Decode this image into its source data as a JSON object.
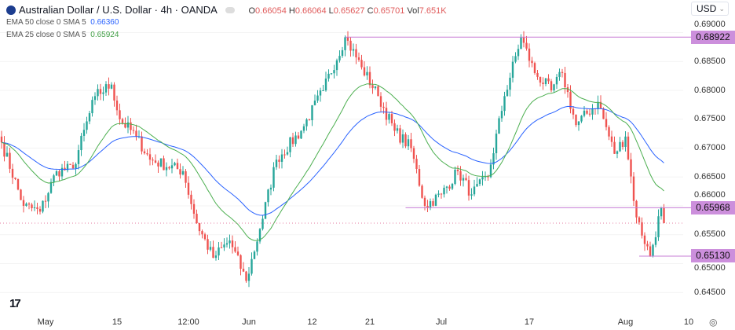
{
  "header": {
    "symbol_title": "Australian Dollar / U.S. Dollar · 4h · OANDA",
    "ohlc": {
      "o_label": "O",
      "o": "0.66054",
      "h_label": "H",
      "h": "0.66064",
      "l_label": "L",
      "l": "0.65627",
      "c_label": "C",
      "c": "0.65701",
      "vol_label": "Vol",
      "vol": "7.651K"
    },
    "ema50": {
      "label": "EMA 50 close 0 SMA 5",
      "value": "0.66360"
    },
    "ema25": {
      "label": "EMA 25 close 0 SMA 5",
      "value": "0.65924"
    },
    "currency": "USD"
  },
  "colors": {
    "up": "#26a69a",
    "down": "#ef5350",
    "ema50": "#2962ff",
    "ema25": "#4caf50",
    "level": "#c77dd6",
    "tag": "#cc8fdc"
  },
  "chart_data": {
    "type": "candlestick",
    "title": "Australian Dollar / U.S. Dollar · 4h · OANDA",
    "ylim": [
      0.6425,
      0.6905
    ],
    "y_ticks": [
      "0.64500",
      "0.65000",
      "0.65500",
      "0.66000",
      "0.66500",
      "0.67000",
      "0.67500",
      "0.68000",
      "0.68500",
      "0.69000"
    ],
    "x_ticks": [
      {
        "label": "May",
        "i": 16
      },
      {
        "label": "15",
        "i": 42
      },
      {
        "label": "12:00",
        "i": 68
      },
      {
        "label": "Jun",
        "i": 90
      },
      {
        "label": "12",
        "i": 113
      },
      {
        "label": "21",
        "i": 134
      },
      {
        "label": "Jul",
        "i": 160
      },
      {
        "label": "17",
        "i": 192
      },
      {
        "label": "Aug",
        "i": 227
      },
      {
        "label": "10",
        "i": 250
      }
    ],
    "close_path": [
      [
        0,
        0.671
      ],
      [
        8,
        0.66
      ],
      [
        14,
        0.659
      ],
      [
        20,
        0.666
      ],
      [
        26,
        0.6665
      ],
      [
        34,
        0.679
      ],
      [
        40,
        0.681
      ],
      [
        43,
        0.675
      ],
      [
        49,
        0.672
      ],
      [
        54,
        0.668
      ],
      [
        66,
        0.666
      ],
      [
        71,
        0.657
      ],
      [
        77,
        0.651
      ],
      [
        83,
        0.654
      ],
      [
        89,
        0.647
      ],
      [
        94,
        0.656
      ],
      [
        100,
        0.668
      ],
      [
        109,
        0.673
      ],
      [
        117,
        0.68
      ],
      [
        125,
        0.6892
      ],
      [
        131,
        0.684
      ],
      [
        137,
        0.679
      ],
      [
        143,
        0.673
      ],
      [
        149,
        0.67
      ],
      [
        154,
        0.66
      ],
      [
        160,
        0.662
      ],
      [
        166,
        0.666
      ],
      [
        171,
        0.662
      ],
      [
        177,
        0.665
      ],
      [
        183,
        0.679
      ],
      [
        189,
        0.6892
      ],
      [
        194,
        0.683
      ],
      [
        200,
        0.68
      ],
      [
        204,
        0.683
      ],
      [
        209,
        0.674
      ],
      [
        217,
        0.678
      ],
      [
        223,
        0.669
      ],
      [
        227,
        0.672
      ],
      [
        231,
        0.658
      ],
      [
        236,
        0.6513
      ],
      [
        240,
        0.6597
      ],
      [
        241,
        0.657
      ]
    ],
    "levels": [
      {
        "price": 0.68922,
        "label": "0.68922",
        "from": 125
      },
      {
        "price": 0.65968,
        "label": "0.65968",
        "from": 147
      },
      {
        "price": 0.6513,
        "label": "0.65130",
        "from": 232
      }
    ],
    "last_price": 0.65701,
    "series": [
      {
        "name": "EMA 50",
        "period": 50
      },
      {
        "name": "EMA 25",
        "period": 25
      }
    ]
  },
  "footer": {
    "logo": "TV"
  }
}
